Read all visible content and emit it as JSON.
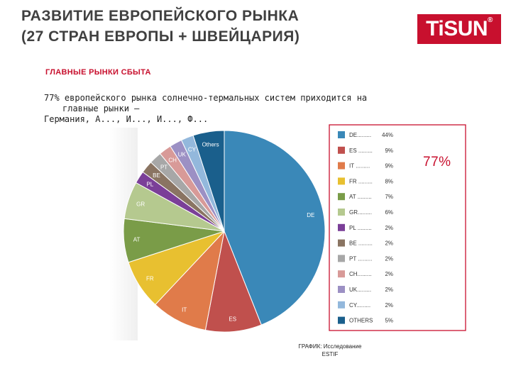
{
  "header": {
    "title_line1": "РАЗВИТИЕ ЕВРОПЕЙСКОГО РЫНКА",
    "title_line2": "(27 СТРАН ЕВРОПЫ + ШВЕЙЦАРИЯ)",
    "logo_text": "TiSUN",
    "logo_mark": "®"
  },
  "section_heading": "ГЛАВНЫЕ РЫНКИ СБЫТА",
  "paragraph": {
    "line1": "77% европейского рынка солнечно-термальных систем приходится на",
    "line2": "главные рынки –",
    "line3": "Германия, А..., И..., И..., Ф..."
  },
  "summary_label": "77%",
  "source_line1": "ГРАФИК: Исследование",
  "source_line2": "ESTIF",
  "colors": {
    "brand_red": "#c8102e",
    "frame_red": "#c8102e"
  },
  "chart_data": {
    "type": "pie",
    "title": "",
    "slices": [
      {
        "label": "DE",
        "legend": "DE.........",
        "value": 44,
        "display": "44%",
        "color": "#3a88b8"
      },
      {
        "label": "ES",
        "legend": "ES .........",
        "value": 9,
        "display": "9%",
        "color": "#c0504d"
      },
      {
        "label": "IT",
        "legend": "IT .........",
        "value": 9,
        "display": "9%",
        "color": "#e07b4a"
      },
      {
        "label": "FR",
        "legend": "FR .........",
        "value": 8,
        "display": "8%",
        "color": "#e8c030"
      },
      {
        "label": "AT",
        "legend": "AT .........",
        "value": 7,
        "display": "7%",
        "color": "#7a9c48"
      },
      {
        "label": "GR",
        "legend": "GR.........",
        "value": 6,
        "display": "6%",
        "color": "#b5c98f"
      },
      {
        "label": "PL",
        "legend": "PL .........",
        "value": 2,
        "display": "2%",
        "color": "#7b3f98"
      },
      {
        "label": "BE",
        "legend": "BE .........",
        "value": 2,
        "display": "2%",
        "color": "#8a7462"
      },
      {
        "label": "PT",
        "legend": "PT .........",
        "value": 2,
        "display": "2%",
        "color": "#a7a7a7"
      },
      {
        "label": "CH",
        "legend": "CH.........",
        "value": 2,
        "display": "2%",
        "color": "#d89a98"
      },
      {
        "label": "UK",
        "legend": "UK.........",
        "value": 2,
        "display": "2%",
        "color": "#9c90c4"
      },
      {
        "label": "CY",
        "legend": "CY.........",
        "value": 2,
        "display": "2%",
        "color": "#93b8dc"
      },
      {
        "label": "Others",
        "legend": "OTHERS",
        "value": 5,
        "display": "5%",
        "color": "#1a5f8c"
      }
    ]
  }
}
